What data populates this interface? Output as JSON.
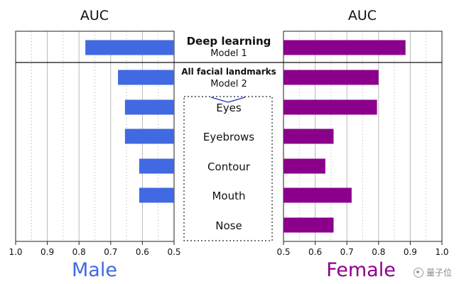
{
  "chart_data": {
    "type": "bar",
    "orientation": "horizontal",
    "axis_title": "AUC",
    "categories": [
      {
        "label": "Deep learning",
        "sublabel": "Model 1",
        "male": 0.78,
        "female": 0.885
      },
      {
        "label": "All facial landmarks",
        "sublabel": "Model 2",
        "male": 0.677,
        "female": 0.8
      },
      {
        "label": "Eyes",
        "sublabel": "",
        "male": 0.655,
        "female": 0.795
      },
      {
        "label": "Eyebrows",
        "sublabel": "",
        "male": 0.655,
        "female": 0.658
      },
      {
        "label": "Contour",
        "sublabel": "",
        "male": 0.61,
        "female": 0.632
      },
      {
        "label": "Mouth",
        "sublabel": "",
        "male": 0.61,
        "female": 0.715
      },
      {
        "label": "Nose",
        "sublabel": "",
        "male": 0.5,
        "female": 0.658
      }
    ],
    "male": {
      "name": "Male",
      "color": "#4169e1",
      "xlim": [
        1.0,
        0.5
      ],
      "ticks": [
        1.0,
        0.9,
        0.8,
        0.7,
        0.6,
        0.5
      ],
      "tick_labels": [
        "1.0",
        "0.9",
        "0.8",
        "0.7",
        "0.6",
        "0.5"
      ]
    },
    "female": {
      "name": "Female",
      "color": "#8b008b",
      "xlim": [
        0.5,
        1.0
      ],
      "ticks": [
        0.5,
        0.6,
        0.7,
        0.8,
        0.9,
        1.0
      ],
      "tick_labels": [
        "0.5",
        "0.6",
        "0.7",
        "0.8",
        "0.9",
        "1.0"
      ]
    }
  },
  "watermark": "量子位"
}
